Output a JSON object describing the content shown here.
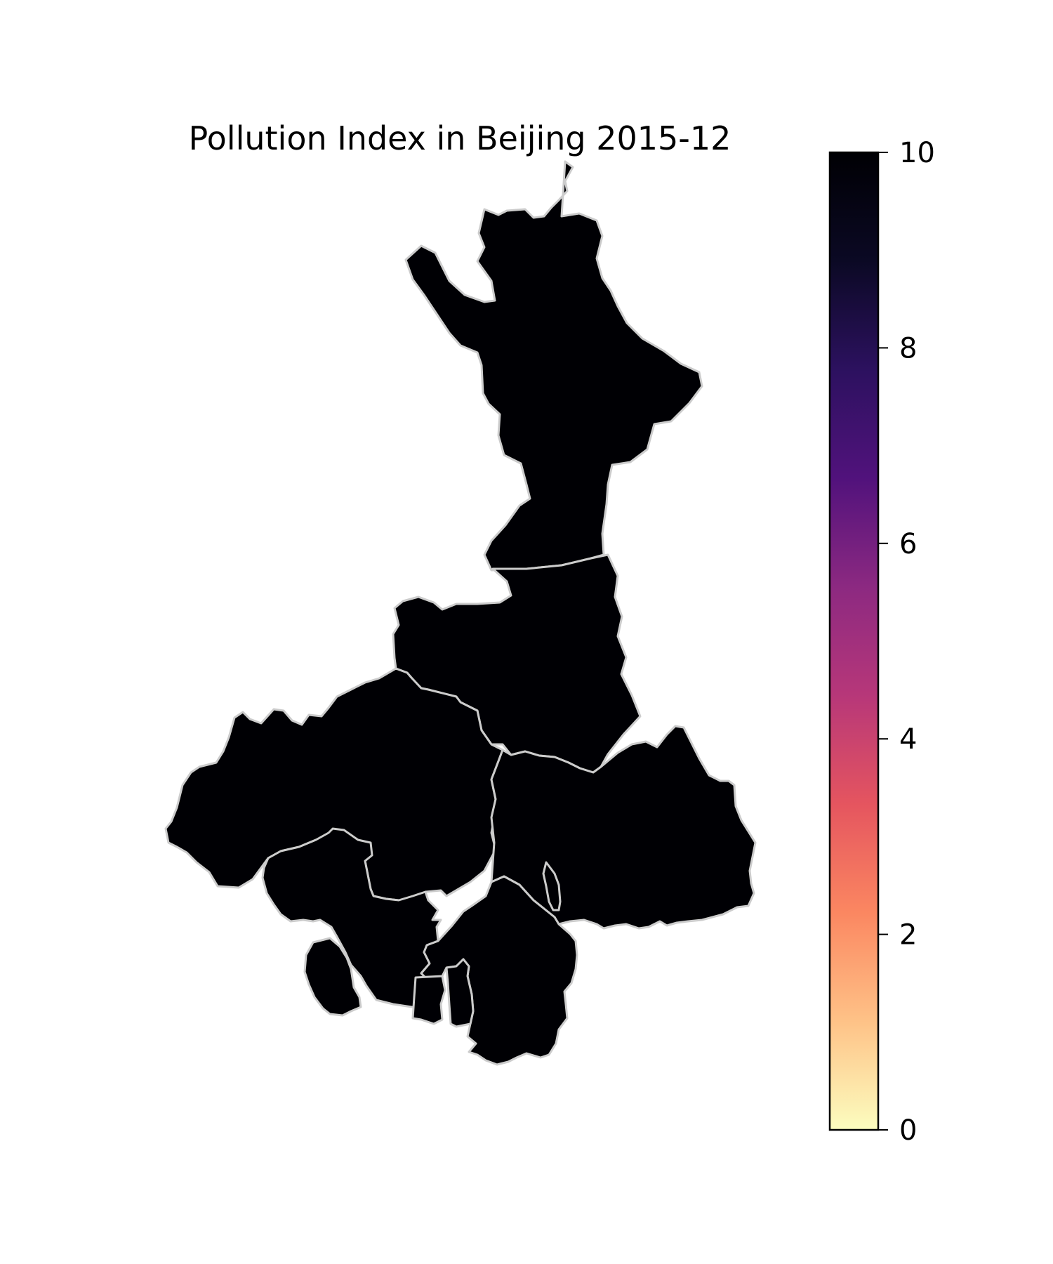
{
  "title": "Pollution Index in Beijing 2015-12",
  "map": {
    "fill_color": "#030306",
    "border_color": "#cccccc",
    "districts": [
      {
        "value": 10
      },
      {
        "value": 10
      },
      {
        "value": 10
      },
      {
        "value": 10
      },
      {
        "value": 10
      },
      {
        "value": 10
      },
      {
        "value": 10
      },
      {
        "value": 10
      },
      {
        "value": 10
      }
    ]
  },
  "colorbar": {
    "colormap": "magma_r",
    "vmin": 0,
    "vmax": 10,
    "stops": [
      "#fcfdbf",
      "#fec287",
      "#fb8761",
      "#e5555f",
      "#b73779",
      "#8c2981",
      "#51127c",
      "#2c115f",
      "#0b0924",
      "#000004"
    ],
    "ticks": [
      {
        "value": 0,
        "label": "0"
      },
      {
        "value": 2,
        "label": "2"
      },
      {
        "value": 4,
        "label": "4"
      },
      {
        "value": 6,
        "label": "6"
      },
      {
        "value": 8,
        "label": "8"
      },
      {
        "value": 10,
        "label": "10"
      }
    ]
  }
}
